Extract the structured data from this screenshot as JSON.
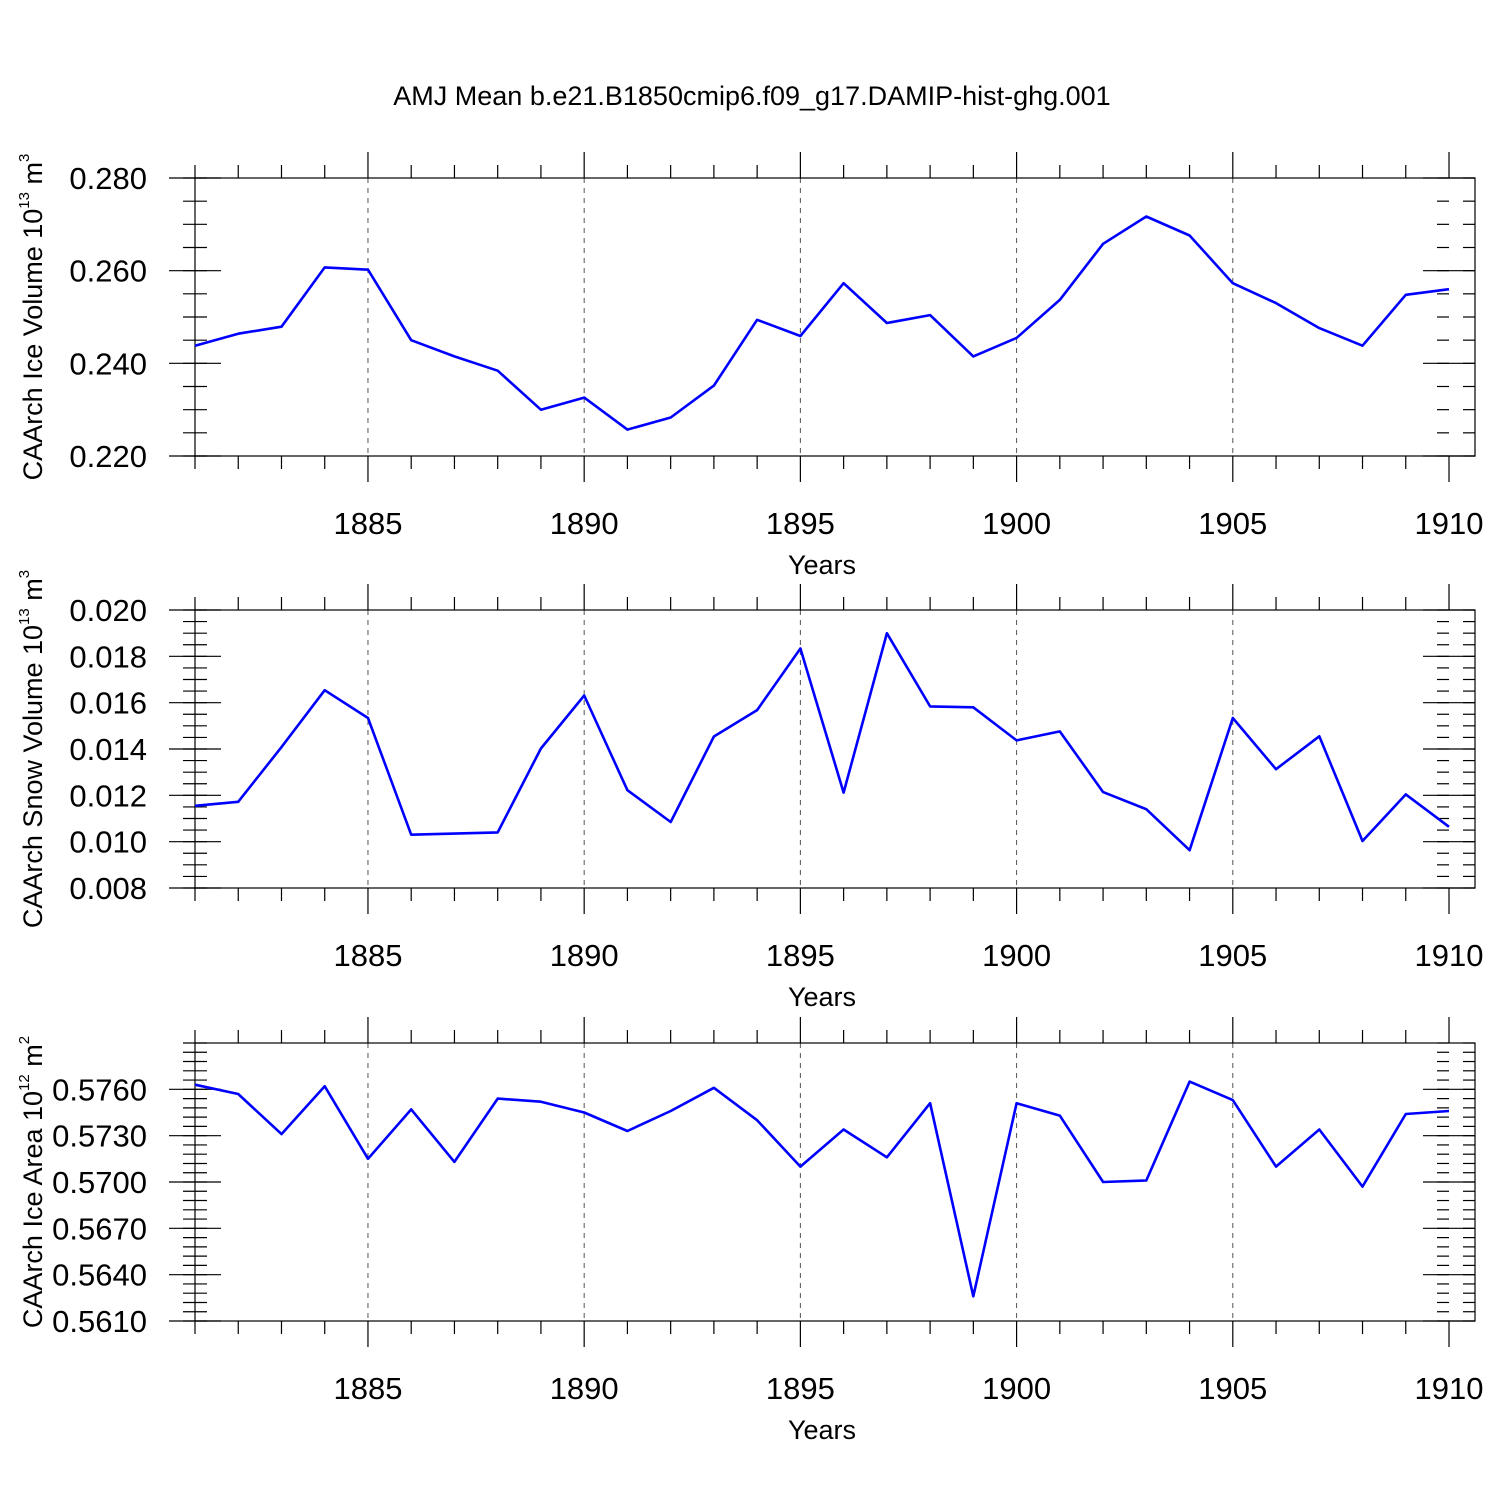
{
  "figure": {
    "title": "AMJ Mean b.e21.B1850cmip6.f09_g17.DAMIP-hist-ghg.001"
  },
  "chart_data": [
    {
      "type": "line",
      "ylabel_main": "CAArch Ice Volume 10",
      "ylabel_exp": "13",
      "ylabel_unit": " m",
      "ylabel_unit_exp": "3",
      "xlabel": "Years",
      "xlim": [
        1881,
        1910
      ],
      "ylim": [
        0.22,
        0.28
      ],
      "yticks": [
        0.22,
        0.24,
        0.26,
        0.28
      ],
      "ytick_labels": [
        "0.220",
        "0.240",
        "0.260",
        "0.280"
      ],
      "y_minor_step": 0.005,
      "xticks": [
        1885,
        1890,
        1895,
        1900,
        1905,
        1910
      ],
      "xtick_labels": [
        "1885",
        "1890",
        "1895",
        "1900",
        "1905",
        "1910"
      ],
      "grid": "x-dashed",
      "color": "#0000ff",
      "x": [
        1881,
        1882,
        1883,
        1884,
        1885,
        1886,
        1887,
        1888,
        1889,
        1890,
        1891,
        1892,
        1893,
        1894,
        1895,
        1896,
        1897,
        1898,
        1899,
        1900,
        1901,
        1902,
        1903,
        1904,
        1905,
        1906,
        1907,
        1908,
        1909,
        1910
      ],
      "values": [
        0.2438,
        0.2464,
        0.2479,
        0.2607,
        0.2602,
        0.245,
        0.2415,
        0.2384,
        0.23,
        0.2326,
        0.2257,
        0.2283,
        0.2352,
        0.2494,
        0.2459,
        0.2573,
        0.2487,
        0.2504,
        0.2415,
        0.2455,
        0.2537,
        0.2658,
        0.2717,
        0.2676,
        0.2573,
        0.253,
        0.2476,
        0.2438,
        0.2548,
        0.256
      ]
    },
    {
      "type": "line",
      "ylabel_main": "CAArch Snow Volume 10",
      "ylabel_exp": "13",
      "ylabel_unit": " m",
      "ylabel_unit_exp": "3",
      "xlabel": "Years",
      "xlim": [
        1881,
        1910
      ],
      "ylim": [
        0.008,
        0.02
      ],
      "yticks": [
        0.008,
        0.01,
        0.012,
        0.014,
        0.016,
        0.018,
        0.02
      ],
      "ytick_labels": [
        "0.008",
        "0.010",
        "0.012",
        "0.014",
        "0.016",
        "0.018",
        "0.020"
      ],
      "y_minor_step": 0.0005,
      "xticks": [
        1885,
        1890,
        1895,
        1900,
        1905,
        1910
      ],
      "xtick_labels": [
        "1885",
        "1890",
        "1895",
        "1900",
        "1905",
        "1910"
      ],
      "grid": "x-dashed",
      "color": "#0000ff",
      "x": [
        1881,
        1882,
        1883,
        1884,
        1885,
        1886,
        1887,
        1888,
        1889,
        1890,
        1891,
        1892,
        1893,
        1894,
        1895,
        1896,
        1897,
        1898,
        1899,
        1900,
        1901,
        1902,
        1903,
        1904,
        1905,
        1906,
        1907,
        1908,
        1909,
        1910
      ],
      "values": [
        0.01155,
        0.01172,
        0.01408,
        0.01654,
        0.01534,
        0.0103,
        0.01035,
        0.0104,
        0.01402,
        0.01631,
        0.01222,
        0.01085,
        0.01454,
        0.01568,
        0.01834,
        0.01212,
        0.019,
        0.01584,
        0.0158,
        0.01437,
        0.01476,
        0.01214,
        0.0114,
        0.00963,
        0.01534,
        0.01313,
        0.01455,
        0.01003,
        0.01204,
        0.01064
      ]
    },
    {
      "type": "line",
      "ylabel_main": "CAArch Ice Area 10",
      "ylabel_exp": "12",
      "ylabel_unit": " m",
      "ylabel_unit_exp": "2",
      "xlabel": "Years",
      "xlim": [
        1881,
        1910
      ],
      "ylim": [
        0.561,
        0.579
      ],
      "yticks": [
        0.561,
        0.564,
        0.567,
        0.57,
        0.573,
        0.576
      ],
      "ytick_labels": [
        "0.5610",
        "0.5640",
        "0.5670",
        "0.5700",
        "0.5730",
        "0.5760"
      ],
      "y_minor_step": 0.0006,
      "xticks": [
        1885,
        1890,
        1895,
        1900,
        1905,
        1910
      ],
      "xtick_labels": [
        "1885",
        "1890",
        "1895",
        "1900",
        "1905",
        "1910"
      ],
      "grid": "x-dashed",
      "color": "#0000ff",
      "x": [
        1881,
        1882,
        1883,
        1884,
        1885,
        1886,
        1887,
        1888,
        1889,
        1890,
        1891,
        1892,
        1893,
        1894,
        1895,
        1896,
        1897,
        1898,
        1899,
        1900,
        1901,
        1902,
        1903,
        1904,
        1905,
        1906,
        1907,
        1908,
        1909,
        1910
      ],
      "values": [
        0.5763,
        0.5757,
        0.5731,
        0.5762,
        0.5715,
        0.5747,
        0.5713,
        0.5754,
        0.5752,
        0.5745,
        0.5733,
        0.5746,
        0.5761,
        0.574,
        0.571,
        0.5734,
        0.5716,
        0.5751,
        0.5626,
        0.5751,
        0.5743,
        0.57,
        0.5701,
        0.5765,
        0.5753,
        0.571,
        0.5734,
        0.5697,
        0.5744,
        0.5746
      ]
    }
  ]
}
